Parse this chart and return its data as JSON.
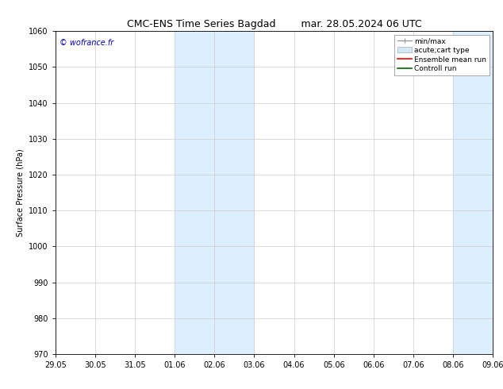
{
  "title_left": "CMC-ENS Time Series Bagdad",
  "title_right": "mar. 28.05.2024 06 UTC",
  "ylabel": "Surface Pressure (hPa)",
  "ylim": [
    970,
    1060
  ],
  "yticks": [
    970,
    980,
    990,
    1000,
    1010,
    1020,
    1030,
    1040,
    1050,
    1060
  ],
  "xtick_labels": [
    "29.05",
    "30.05",
    "31.05",
    "01.06",
    "02.06",
    "03.06",
    "04.06",
    "05.06",
    "06.06",
    "07.06",
    "08.06",
    "09.06"
  ],
  "xtick_positions": [
    0,
    1,
    2,
    3,
    4,
    5,
    6,
    7,
    8,
    9,
    10,
    11
  ],
  "shaded_bands": [
    {
      "x_start": 3,
      "x_end": 5
    },
    {
      "x_start": 10,
      "x_end": 11
    }
  ],
  "shaded_color": "#ddeeff",
  "watermark_text": "© wofrance.fr",
  "watermark_color": "#0000cc",
  "bg_color": "#ffffff",
  "grid_color": "#cccccc",
  "title_fontsize": 9,
  "axis_label_fontsize": 7,
  "tick_fontsize": 7,
  "legend_fontsize": 6.5,
  "watermark_fontsize": 7
}
